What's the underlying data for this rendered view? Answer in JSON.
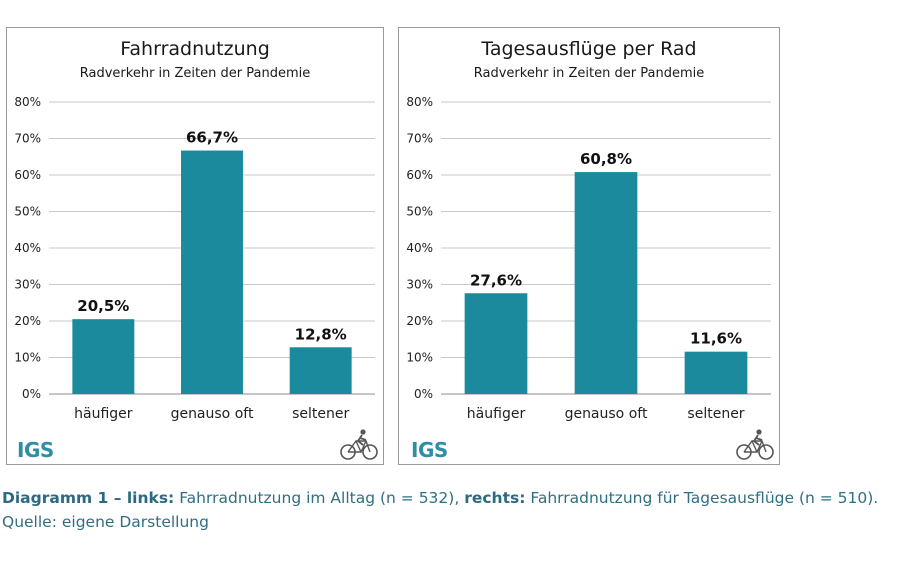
{
  "chart_data": [
    {
      "type": "bar",
      "title": "Fahrradnutzung",
      "subtitle": "Radverkehr in Zeiten der Pandemie",
      "categories": [
        "häufiger",
        "genauso oft",
        "seltener"
      ],
      "values": [
        20.5,
        66.7,
        12.8
      ],
      "value_labels": [
        "20,5%",
        "66,7%",
        "12,8%"
      ],
      "ylim": [
        0,
        80
      ],
      "yticks": [
        "0%",
        "10%",
        "20%",
        "30%",
        "40%",
        "50%",
        "60%",
        "70%",
        "80%"
      ],
      "grid": true,
      "bar_color": "#1a8a9c"
    },
    {
      "type": "bar",
      "title": "Tagesausflüge per Rad",
      "subtitle": "Radverkehr in Zeiten der Pandemie",
      "categories": [
        "häufiger",
        "genauso oft",
        "seltener"
      ],
      "values": [
        27.6,
        60.8,
        11.6
      ],
      "value_labels": [
        "27,6%",
        "60,8%",
        "11,6%"
      ],
      "ylim": [
        0,
        80
      ],
      "yticks": [
        "0%",
        "10%",
        "20%",
        "30%",
        "40%",
        "50%",
        "60%",
        "70%",
        "80%"
      ],
      "grid": true,
      "bar_color": "#1a8a9c"
    }
  ],
  "logo_text": "IGS",
  "icons": {
    "bike": "cyclist-icon"
  },
  "caption": {
    "part1_bold": "Diagramm 1 – links:",
    "part2": " Fahrradnutzung im Alltag (n = 532), ",
    "part3_bold": "rechts:",
    "part4": " Fahrradnutzung für Tages­ausflüge (n = 510). Quelle: eigene Darstellung"
  }
}
